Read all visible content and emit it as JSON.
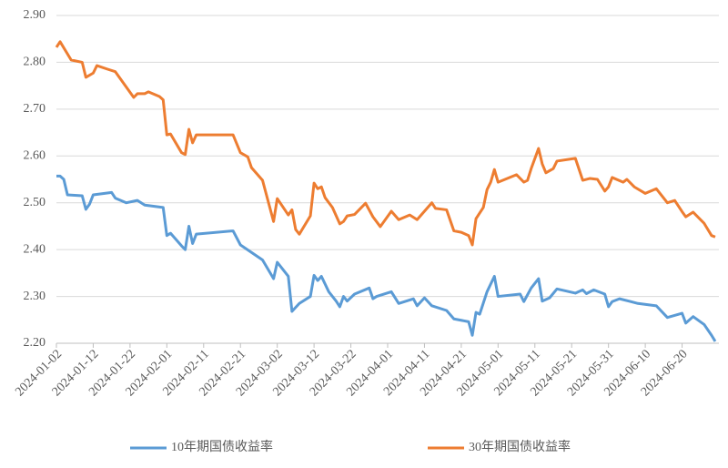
{
  "chart_data": {
    "type": "line",
    "xlim": [
      "2024-01-02",
      "2024-06-30"
    ],
    "xticks": [
      "2024-01-02",
      "2024-01-12",
      "2024-01-22",
      "2024-02-01",
      "2024-02-11",
      "2024-02-21",
      "2024-03-02",
      "2024-03-12",
      "2024-03-22",
      "2024-04-01",
      "2024-04-11",
      "2024-04-21",
      "2024-05-01",
      "2024-05-11",
      "2024-05-21",
      "2024-05-31",
      "2024-06-10",
      "2024-06-20"
    ],
    "ylim": [
      2.2,
      2.9
    ],
    "yticks": [
      {
        "value": 2.2,
        "label": "2.20"
      },
      {
        "value": 2.3,
        "label": "2.30"
      },
      {
        "value": 2.4,
        "label": "2.40"
      },
      {
        "value": 2.5,
        "label": "2.50"
      },
      {
        "value": 2.6,
        "label": "2.60"
      },
      {
        "value": 2.7,
        "label": "2.70"
      },
      {
        "value": 2.8,
        "label": "2.80"
      },
      {
        "value": 2.9,
        "label": "2.90"
      }
    ],
    "grid": true,
    "legend": "bottom",
    "series": [
      {
        "name": "10年期国债收益率",
        "color": "#5b9bd5",
        "x": [
          "2024-01-02",
          "2024-01-03",
          "2024-01-04",
          "2024-01-05",
          "2024-01-09",
          "2024-01-10",
          "2024-01-11",
          "2024-01-12",
          "2024-01-17",
          "2024-01-18",
          "2024-01-21",
          "2024-01-24",
          "2024-01-26",
          "2024-01-31",
          "2024-02-01",
          "2024-02-02",
          "2024-02-05",
          "2024-02-06",
          "2024-02-07",
          "2024-02-08",
          "2024-02-09",
          "2024-02-19",
          "2024-02-21",
          "2024-02-27",
          "2024-03-01",
          "2024-03-02",
          "2024-03-05",
          "2024-03-06",
          "2024-03-08",
          "2024-03-11",
          "2024-03-12",
          "2024-03-13",
          "2024-03-14",
          "2024-03-16",
          "2024-03-18",
          "2024-03-19",
          "2024-03-20",
          "2024-03-21",
          "2024-03-23",
          "2024-03-27",
          "2024-03-28",
          "2024-03-29",
          "2024-04-02",
          "2024-04-04",
          "2024-04-08",
          "2024-04-09",
          "2024-04-11",
          "2024-04-13",
          "2024-04-17",
          "2024-04-19",
          "2024-04-23",
          "2024-04-24",
          "2024-04-25",
          "2024-04-26",
          "2024-04-28",
          "2024-04-30",
          "2024-05-01",
          "2024-05-07",
          "2024-05-08",
          "2024-05-10",
          "2024-05-12",
          "2024-05-13",
          "2024-05-15",
          "2024-05-17",
          "2024-05-22",
          "2024-05-24",
          "2024-05-25",
          "2024-05-27",
          "2024-05-30",
          "2024-05-31",
          "2024-06-01",
          "2024-06-03",
          "2024-06-06",
          "2024-06-08",
          "2024-06-13",
          "2024-06-16",
          "2024-06-20",
          "2024-06-21",
          "2024-06-23",
          "2024-06-26",
          "2024-06-28",
          "2024-06-29"
        ],
        "values": [
          2.557,
          2.557,
          2.55,
          2.517,
          2.515,
          2.486,
          2.497,
          2.517,
          2.522,
          2.51,
          2.5,
          2.505,
          2.495,
          2.49,
          2.43,
          2.435,
          2.408,
          2.4,
          2.45,
          2.413,
          2.433,
          2.44,
          2.41,
          2.378,
          2.338,
          2.373,
          2.343,
          2.268,
          2.285,
          2.3,
          2.345,
          2.334,
          2.343,
          2.31,
          2.29,
          2.278,
          2.3,
          2.29,
          2.305,
          2.318,
          2.295,
          2.3,
          2.31,
          2.285,
          2.295,
          2.28,
          2.297,
          2.28,
          2.27,
          2.252,
          2.246,
          2.217,
          2.266,
          2.262,
          2.31,
          2.343,
          2.3,
          2.305,
          2.289,
          2.318,
          2.338,
          2.29,
          2.297,
          2.316,
          2.307,
          2.314,
          2.306,
          2.314,
          2.305,
          2.278,
          2.289,
          2.295,
          2.289,
          2.285,
          2.28,
          2.255,
          2.264,
          2.243,
          2.257,
          2.24,
          2.217,
          2.204
        ]
      },
      {
        "name": "30年期国债收益率",
        "color": "#ed7d31",
        "x": [
          "2024-01-02",
          "2024-01-03",
          "2024-01-06",
          "2024-01-09",
          "2024-01-10",
          "2024-01-12",
          "2024-01-13",
          "2024-01-16",
          "2024-01-18",
          "2024-01-23",
          "2024-01-24",
          "2024-01-26",
          "2024-01-27",
          "2024-01-30",
          "2024-01-31",
          "2024-02-01",
          "2024-02-02",
          "2024-02-05",
          "2024-02-06",
          "2024-02-07",
          "2024-02-08",
          "2024-02-09",
          "2024-02-19",
          "2024-02-21",
          "2024-02-23",
          "2024-02-24",
          "2024-02-27",
          "2024-03-01",
          "2024-03-02",
          "2024-03-05",
          "2024-03-06",
          "2024-03-07",
          "2024-03-08",
          "2024-03-11",
          "2024-03-12",
          "2024-03-13",
          "2024-03-14",
          "2024-03-15",
          "2024-03-17",
          "2024-03-19",
          "2024-03-20",
          "2024-03-21",
          "2024-03-23",
          "2024-03-26",
          "2024-03-28",
          "2024-03-30",
          "2024-04-02",
          "2024-04-04",
          "2024-04-07",
          "2024-04-09",
          "2024-04-13",
          "2024-04-14",
          "2024-04-17",
          "2024-04-19",
          "2024-04-21",
          "2024-04-23",
          "2024-04-24",
          "2024-04-25",
          "2024-04-27",
          "2024-04-28",
          "2024-04-29",
          "2024-04-30",
          "2024-05-01",
          "2024-05-06",
          "2024-05-08",
          "2024-05-09",
          "2024-05-10",
          "2024-05-12",
          "2024-05-13",
          "2024-05-14",
          "2024-05-16",
          "2024-05-17",
          "2024-05-22",
          "2024-05-24",
          "2024-05-26",
          "2024-05-28",
          "2024-05-30",
          "2024-05-31",
          "2024-06-01",
          "2024-06-04",
          "2024-06-05",
          "2024-06-07",
          "2024-06-10",
          "2024-06-13",
          "2024-06-16",
          "2024-06-18",
          "2024-06-20",
          "2024-06-21",
          "2024-06-23",
          "2024-06-26",
          "2024-06-28",
          "2024-06-29"
        ],
        "values": [
          2.832,
          2.844,
          2.805,
          2.8,
          2.768,
          2.777,
          2.793,
          2.785,
          2.78,
          2.725,
          2.733,
          2.733,
          2.737,
          2.727,
          2.72,
          2.645,
          2.647,
          2.607,
          2.603,
          2.657,
          2.628,
          2.645,
          2.645,
          2.607,
          2.598,
          2.575,
          2.548,
          2.46,
          2.509,
          2.474,
          2.485,
          2.443,
          2.433,
          2.472,
          2.542,
          2.53,
          2.534,
          2.511,
          2.49,
          2.455,
          2.46,
          2.472,
          2.475,
          2.499,
          2.47,
          2.449,
          2.482,
          2.464,
          2.474,
          2.464,
          2.5,
          2.488,
          2.485,
          2.44,
          2.437,
          2.43,
          2.41,
          2.466,
          2.49,
          2.528,
          2.544,
          2.571,
          2.544,
          2.56,
          2.544,
          2.548,
          2.573,
          2.616,
          2.583,
          2.564,
          2.573,
          2.589,
          2.595,
          2.548,
          2.552,
          2.55,
          2.525,
          2.534,
          2.554,
          2.544,
          2.55,
          2.534,
          2.52,
          2.53,
          2.5,
          2.505,
          2.481,
          2.47,
          2.48,
          2.456,
          2.43,
          2.427
        ]
      }
    ]
  }
}
